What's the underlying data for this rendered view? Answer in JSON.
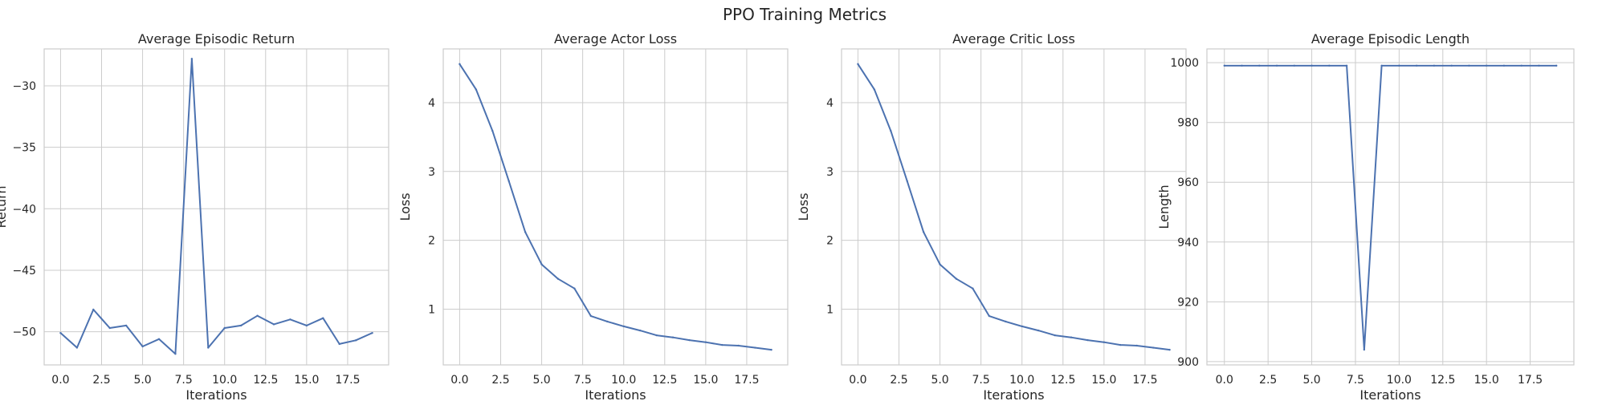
{
  "figure": {
    "title": "PPO Training Metrics"
  },
  "style": {
    "line_color": "#4c72b0",
    "grid_color": "#cccccc",
    "spine_color": "#cccccc",
    "background": "#ffffff"
  },
  "chart_data": [
    {
      "type": "line",
      "title": "Average Episodic Return",
      "xlabel": "Iterations",
      "ylabel": "Return",
      "xlim": [
        -1,
        20
      ],
      "ylim": [
        -52.7,
        -27.0
      ],
      "xticks": [
        0,
        2.5,
        5,
        7.5,
        10,
        12.5,
        15,
        17.5
      ],
      "xtick_labels": [
        "0.0",
        "2.5",
        "5.0",
        "7.5",
        "10.0",
        "12.5",
        "15.0",
        "17.5"
      ],
      "yticks": [
        -50,
        -45,
        -40,
        -35,
        -30
      ],
      "ytick_labels": [
        "−50",
        "−45",
        "−40",
        "−35",
        "−30"
      ],
      "grid": true,
      "series": [
        {
          "x": [
            0,
            1,
            2,
            3,
            4,
            5,
            6,
            7,
            8,
            9,
            10,
            11,
            12,
            13,
            14,
            15,
            16,
            17,
            18,
            19
          ],
          "values": [
            -50.1,
            -51.3,
            -48.2,
            -49.7,
            -49.5,
            -51.2,
            -50.6,
            -51.8,
            -27.8,
            -51.3,
            -49.7,
            -49.5,
            -48.7,
            -49.4,
            -49.0,
            -49.5,
            -48.9,
            -51.0,
            -50.7,
            -50.1
          ]
        }
      ]
    },
    {
      "type": "line",
      "title": "Average Actor Loss",
      "xlabel": "Iterations",
      "ylabel": "Loss",
      "xlim": [
        -1,
        20
      ],
      "ylim": [
        0.19,
        4.78
      ],
      "xticks": [
        0,
        2.5,
        5,
        7.5,
        10,
        12.5,
        15,
        17.5
      ],
      "xtick_labels": [
        "0.0",
        "2.5",
        "5.0",
        "7.5",
        "10.0",
        "12.5",
        "15.0",
        "17.5"
      ],
      "yticks": [
        1,
        2,
        3,
        4
      ],
      "ytick_labels": [
        "1",
        "2",
        "3",
        "4"
      ],
      "grid": true,
      "series": [
        {
          "x": [
            0,
            1,
            2,
            3,
            4,
            5,
            6,
            7,
            8,
            9,
            10,
            11,
            12,
            13,
            14,
            15,
            16,
            17,
            18,
            19
          ],
          "values": [
            4.56,
            4.19,
            3.59,
            2.86,
            2.12,
            1.65,
            1.44,
            1.3,
            0.9,
            0.82,
            0.75,
            0.69,
            0.62,
            0.59,
            0.55,
            0.52,
            0.48,
            0.47,
            0.44,
            0.41
          ]
        }
      ]
    },
    {
      "type": "line",
      "title": "Average Critic Loss",
      "xlabel": "Iterations",
      "ylabel": "Loss",
      "xlim": [
        -1,
        20
      ],
      "ylim": [
        0.19,
        4.78
      ],
      "xticks": [
        0,
        2.5,
        5,
        7.5,
        10,
        12.5,
        15,
        17.5
      ],
      "xtick_labels": [
        "0.0",
        "2.5",
        "5.0",
        "7.5",
        "10.0",
        "12.5",
        "15.0",
        "17.5"
      ],
      "yticks": [
        1,
        2,
        3,
        4
      ],
      "ytick_labels": [
        "1",
        "2",
        "3",
        "4"
      ],
      "grid": true,
      "series": [
        {
          "x": [
            0,
            1,
            2,
            3,
            4,
            5,
            6,
            7,
            8,
            9,
            10,
            11,
            12,
            13,
            14,
            15,
            16,
            17,
            18,
            19
          ],
          "values": [
            4.56,
            4.19,
            3.59,
            2.86,
            2.12,
            1.65,
            1.44,
            1.3,
            0.9,
            0.82,
            0.75,
            0.69,
            0.62,
            0.59,
            0.55,
            0.52,
            0.48,
            0.47,
            0.44,
            0.41
          ]
        }
      ]
    },
    {
      "type": "line",
      "title": "Average Episodic Length",
      "xlabel": "Iterations",
      "ylabel": "Length",
      "xlim": [
        -1,
        20
      ],
      "ylim": [
        898.9,
        1004.6
      ],
      "xticks": [
        0,
        2.5,
        5,
        7.5,
        10,
        12.5,
        15,
        17.5
      ],
      "xtick_labels": [
        "0.0",
        "2.5",
        "5.0",
        "7.5",
        "10.0",
        "12.5",
        "15.0",
        "17.5"
      ],
      "yticks": [
        900,
        920,
        940,
        960,
        980,
        1000
      ],
      "ytick_labels": [
        "900",
        "920",
        "940",
        "960",
        "980",
        "1000"
      ],
      "grid": true,
      "series": [
        {
          "x": [
            0,
            1,
            2,
            3,
            4,
            5,
            6,
            7,
            8,
            9,
            10,
            11,
            12,
            13,
            14,
            15,
            16,
            17,
            18,
            19
          ],
          "values": [
            999,
            999,
            999,
            999,
            999,
            999,
            999,
            999,
            904,
            999,
            999,
            999,
            999,
            999,
            999,
            999,
            999,
            999,
            999,
            999
          ]
        }
      ]
    }
  ]
}
